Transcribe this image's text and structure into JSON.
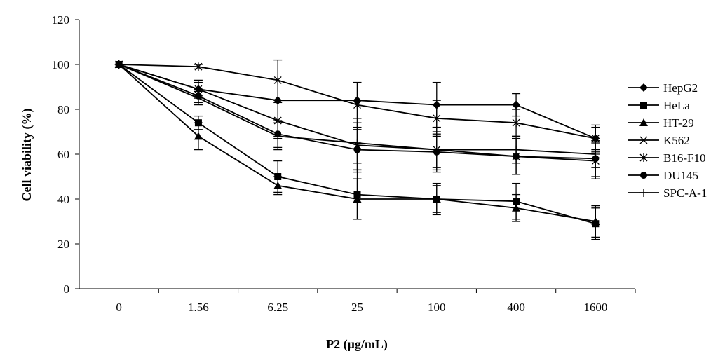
{
  "chart_data": {
    "type": "line",
    "title": "",
    "xlabel": "P2 (μg/mL)",
    "ylabel": "Cell viability (%)",
    "categories": [
      "0",
      "1.56",
      "6.25",
      "25",
      "100",
      "400",
      "1600"
    ],
    "ylim": [
      0,
      120
    ],
    "yticks": [
      0,
      20,
      40,
      60,
      80,
      100,
      120
    ],
    "grid": false,
    "legend_position": "right",
    "series": [
      {
        "name": "HepG2",
        "marker": "diamond",
        "values": [
          100,
          89,
          84,
          84,
          82,
          82,
          67
        ],
        "errors": [
          0,
          3,
          0,
          8,
          10,
          5,
          6
        ]
      },
      {
        "name": "HeLa",
        "marker": "square",
        "values": [
          100,
          74,
          50,
          42,
          40,
          39,
          29
        ],
        "errors": [
          0,
          3,
          7,
          11,
          6,
          8,
          7
        ]
      },
      {
        "name": "HT-29",
        "marker": "triangle",
        "values": [
          100,
          68,
          46,
          40,
          40,
          36,
          30
        ],
        "errors": [
          0,
          6,
          4,
          9,
          7,
          6,
          7
        ]
      },
      {
        "name": "K562",
        "marker": "x",
        "values": [
          100,
          89,
          75,
          64,
          62,
          59,
          57
        ],
        "errors": [
          0,
          4,
          8,
          12,
          10,
          8,
          8
        ]
      },
      {
        "name": "B16-F10",
        "marker": "star",
        "values": [
          100,
          99,
          93,
          82,
          76,
          74,
          67
        ],
        "errors": [
          0,
          1,
          9,
          10,
          8,
          6,
          5
        ]
      },
      {
        "name": "DU145",
        "marker": "circle",
        "values": [
          100,
          86,
          69,
          62,
          61,
          59,
          58
        ],
        "errors": [
          0,
          3,
          6,
          9,
          8,
          8,
          8
        ]
      },
      {
        "name": "SPC-A-1",
        "marker": "plus",
        "values": [
          100,
          85,
          68,
          65,
          62,
          62,
          60
        ],
        "errors": [
          0,
          3,
          6,
          9,
          8,
          6,
          6
        ]
      }
    ]
  }
}
